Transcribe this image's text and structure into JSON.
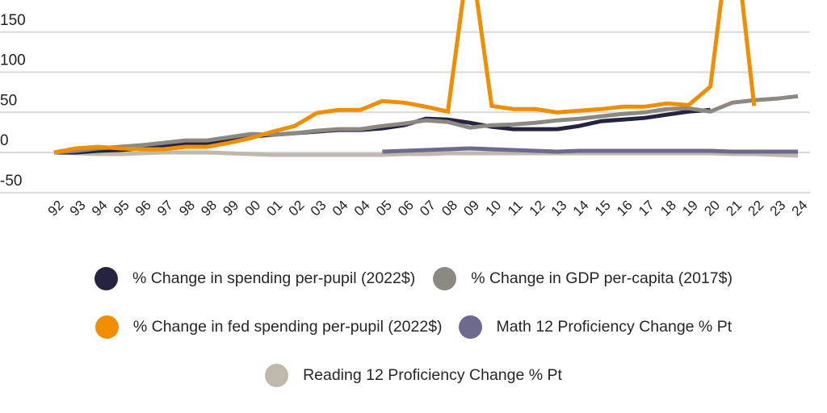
{
  "chart_data": {
    "type": "line",
    "title": "",
    "xlabel": "",
    "ylabel": "",
    "ylim": [
      -50,
      150
    ],
    "yticks": [
      150,
      100,
      50,
      0,
      -50
    ],
    "grid": true,
    "legend_position": "bottom",
    "categories": [
      "92",
      "93",
      "94",
      "95",
      "96",
      "97",
      "98",
      "98",
      "99",
      "00",
      "01",
      "02",
      "03",
      "04",
      "04",
      "05",
      "06",
      "07",
      "08",
      "09",
      "10",
      "11",
      "12",
      "13",
      "14",
      "15",
      "16",
      "17",
      "18",
      "19",
      "20",
      "21",
      "22",
      "23",
      "24"
    ],
    "series": [
      {
        "name": "% Change in spending per-pupil (2022$)",
        "color": "#262340",
        "values": [
          0,
          0,
          2,
          3,
          5,
          8,
          11,
          11,
          15,
          20,
          22,
          24,
          26,
          28,
          28,
          30,
          34,
          42,
          41,
          37,
          32,
          29,
          29,
          29,
          33,
          39,
          41,
          43,
          47,
          51,
          53,
          null,
          null,
          null,
          null
        ]
      },
      {
        "name": "% Change in GDP per-capita (2017$)",
        "color": "#8C8882",
        "values": [
          0,
          2,
          5,
          7,
          9,
          12,
          15,
          15,
          19,
          23,
          22,
          24,
          27,
          29,
          29,
          33,
          36,
          40,
          38,
          31,
          34,
          35,
          37,
          40,
          42,
          45,
          48,
          50,
          54,
          55,
          51,
          62,
          65,
          67,
          70
        ]
      },
      {
        "name": "% Change in fed spending per-pupil (2022$)",
        "color": "#EE8E00",
        "values": [
          0,
          5,
          7,
          5,
          4,
          4,
          7,
          7,
          12,
          18,
          26,
          33,
          49,
          53,
          53,
          64,
          62,
          57,
          51,
          255,
          58,
          54,
          54,
          50,
          52,
          54,
          57,
          57,
          61,
          59,
          82,
          300,
          58,
          null,
          null
        ]
      },
      {
        "name": "Math 12 Proficiency Change % Pt",
        "color": "#6E6A8E",
        "values": [
          null,
          null,
          null,
          null,
          null,
          null,
          null,
          null,
          null,
          null,
          null,
          null,
          null,
          null,
          null,
          1,
          2,
          3,
          4,
          5,
          4,
          3,
          2,
          1,
          2,
          2,
          2,
          2,
          2,
          2,
          2,
          1,
          1,
          1,
          1
        ]
      },
      {
        "name": "Reading 12 Proficiency Change % Pt",
        "color": "#BFB8AD",
        "values": [
          0,
          -1,
          -2,
          -2,
          -1,
          0,
          0,
          0,
          -1,
          -2,
          -3,
          -3,
          -3,
          -3,
          -3,
          -3,
          -2,
          -2,
          -1,
          -1,
          -1,
          -1,
          -1,
          -1,
          -1,
          -1,
          -1,
          -1,
          -1,
          -1,
          -1,
          -2,
          -2,
          -3,
          -4
        ]
      }
    ],
    "annotations": [
      "Fed spending series spikes above chart top at 09 and 21 (clipped)"
    ]
  },
  "axis": {
    "y_labels": [
      "150",
      "100",
      "50",
      "0",
      "-50"
    ]
  },
  "legend": {
    "items": [
      {
        "label": "% Change in spending per-pupil (2022$)",
        "color": "#262340"
      },
      {
        "label": "% Change in GDP per-capita (2017$)",
        "color": "#8C8882"
      },
      {
        "label": "% Change in fed spending per-pupil (2022$)",
        "color": "#EE8E00"
      },
      {
        "label": "Math 12 Proficiency Change % Pt",
        "color": "#6E6A8E"
      },
      {
        "label": "Reading 12 Proficiency Change % Pt",
        "color": "#BFB8AD"
      }
    ]
  },
  "colors": {
    "gridline": "#D9D9D9",
    "text": "#222222",
    "background": "#FFFFFF"
  }
}
